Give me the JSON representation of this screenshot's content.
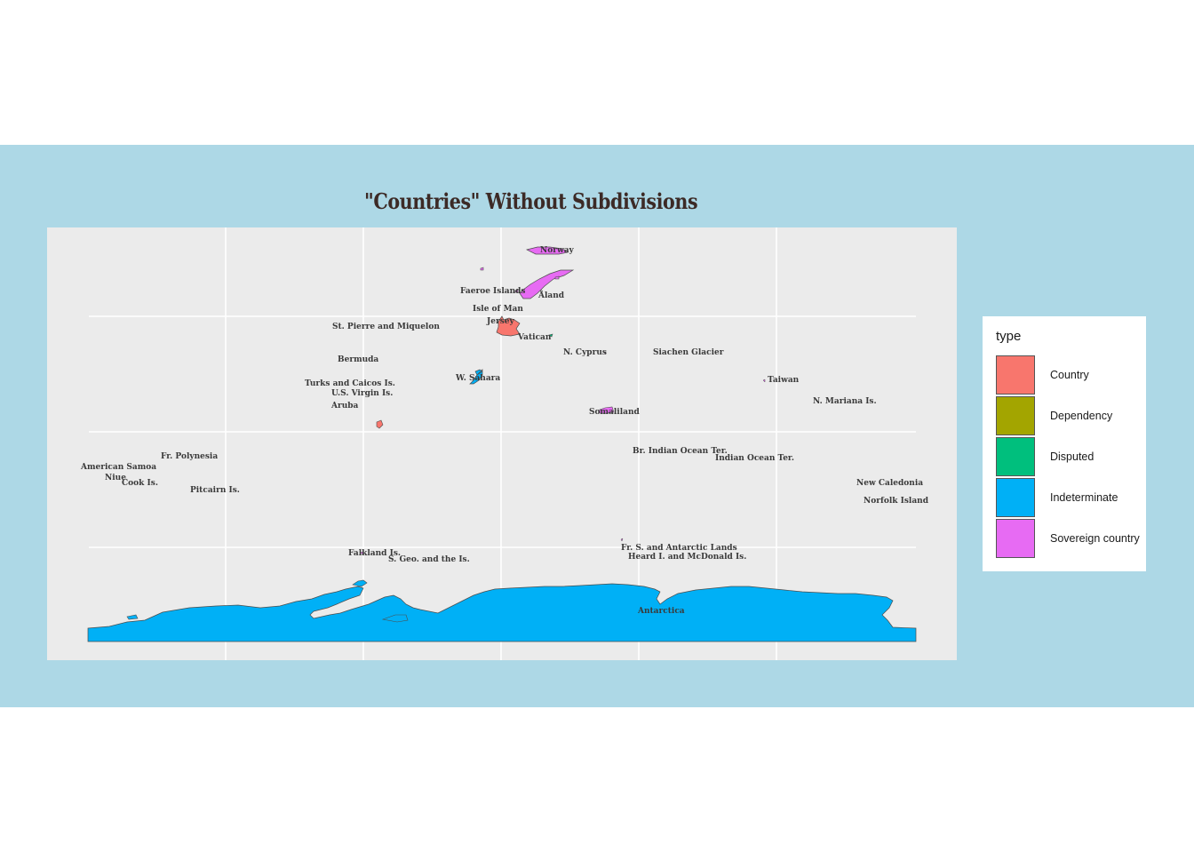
{
  "title": "\"Countries\" Without Subdivisions",
  "colors": {
    "background": "#add8e6",
    "panel": "#ebebeb",
    "grid": "#ffffff",
    "border": "#4d4d4d",
    "Country": "#f8766d",
    "Dependency": "#a3a500",
    "Disputed": "#00bf7d",
    "Indeterminate": "#00b0f6",
    "Sovereign country": "#e76bf3"
  },
  "legend": {
    "title": "type",
    "items": [
      {
        "label": "Country",
        "color": "#f8766d"
      },
      {
        "label": "Dependency",
        "color": "#a3a500"
      },
      {
        "label": "Disputed",
        "color": "#00bf7d"
      },
      {
        "label": "Indeterminate",
        "color": "#00b0f6"
      },
      {
        "label": "Sovereign country",
        "color": "#e76bf3"
      }
    ]
  },
  "map": {
    "grid": true,
    "regions": [
      {
        "name": "Norway",
        "type": "Sovereign country"
      },
      {
        "name": "Faeroe Islands",
        "type": "Sovereign country"
      },
      {
        "name": "Åland",
        "type": "Sovereign country"
      },
      {
        "name": "Isle of Man",
        "type": "Sovereign country"
      },
      {
        "name": "Jersey",
        "type": "Country"
      },
      {
        "name": "Vatican",
        "type": "Disputed"
      },
      {
        "name": "St. Pierre and Miquelon",
        "type": "Sovereign country"
      },
      {
        "name": "N. Cyprus",
        "type": "Sovereign country"
      },
      {
        "name": "Siachen Glacier",
        "type": "Sovereign country"
      },
      {
        "name": "Bermuda",
        "type": "Sovereign country"
      },
      {
        "name": "W. Sahara",
        "type": "Indeterminate"
      },
      {
        "name": "Turks and Caicos Is.",
        "type": "Sovereign country"
      },
      {
        "name": "U.S. Virgin Is.",
        "type": "Sovereign country"
      },
      {
        "name": "Aruba",
        "type": "Country"
      },
      {
        "name": "Taiwan",
        "type": "Sovereign country"
      },
      {
        "name": "N. Mariana Is.",
        "type": "Sovereign country"
      },
      {
        "name": "Somaliland",
        "type": "Sovereign country"
      },
      {
        "name": "Br. Indian Ocean Ter.",
        "type": "Sovereign country"
      },
      {
        "name": "Indian Ocean Ter.",
        "type": "Sovereign country"
      },
      {
        "name": "Fr. Polynesia",
        "type": "Sovereign country"
      },
      {
        "name": "American Samoa",
        "type": "Sovereign country"
      },
      {
        "name": "Niue",
        "type": "Sovereign country"
      },
      {
        "name": "Cook Is.",
        "type": "Sovereign country"
      },
      {
        "name": "Pitcairn Is.",
        "type": "Sovereign country"
      },
      {
        "name": "New Caledonia",
        "type": "Sovereign country"
      },
      {
        "name": "Norfolk Island",
        "type": "Sovereign country"
      },
      {
        "name": "Falkland Is.",
        "type": "Sovereign country"
      },
      {
        "name": "S. Geo. and the Is.",
        "type": "Sovereign country"
      },
      {
        "name": "Fr. S. and Antarctic Lands",
        "type": "Sovereign country"
      },
      {
        "name": "Heard I. and McDonald Is.",
        "type": "Sovereign country"
      },
      {
        "name": "Antarctica",
        "type": "Indeterminate"
      }
    ]
  }
}
